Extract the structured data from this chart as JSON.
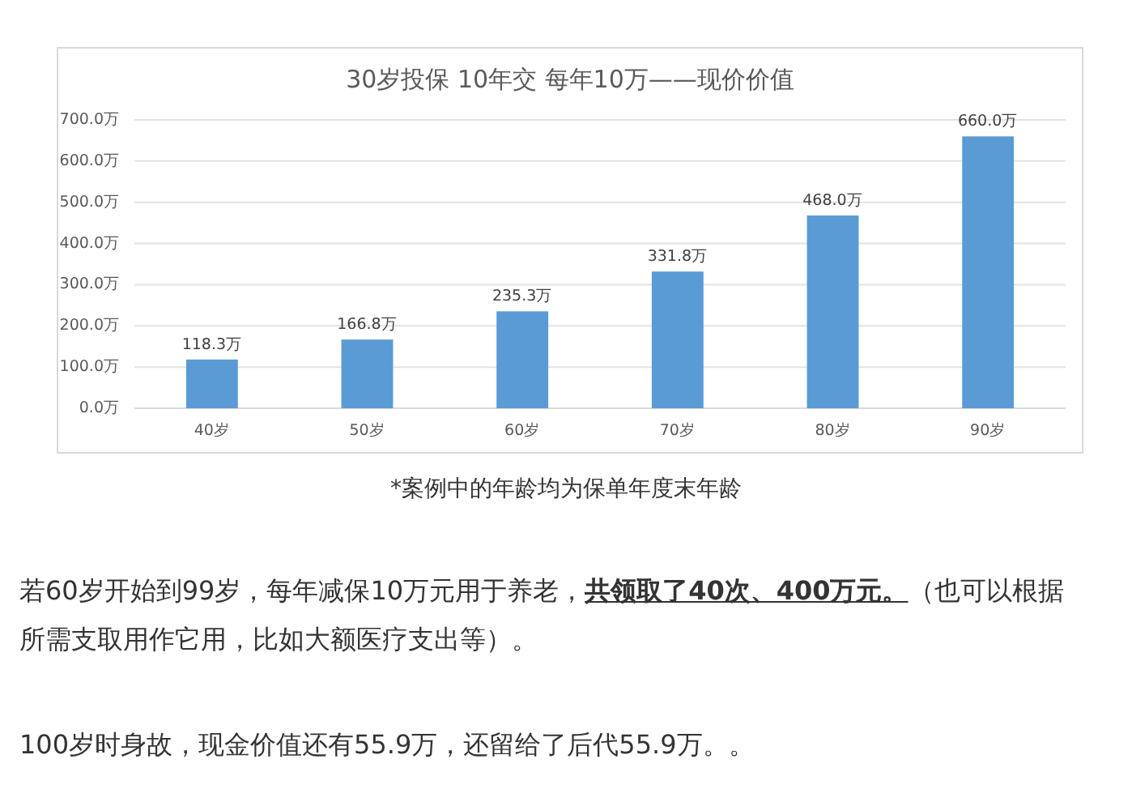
{
  "chart_data": {
    "type": "bar",
    "title": "30岁投保 10年交 每年10万——现价价值",
    "categories": [
      "40岁",
      "50岁",
      "60岁",
      "70岁",
      "80岁",
      "90岁"
    ],
    "values": [
      118.3,
      166.8,
      235.3,
      331.8,
      468.0,
      660.0
    ],
    "value_labels": [
      "118.3万",
      "166.8万",
      "235.3万",
      "331.8万",
      "468.0万",
      "660.0万"
    ],
    "color": "#5b9bd5",
    "ylim": [
      0,
      700
    ],
    "yticks": [
      {
        "value": 0,
        "label": "0.0万"
      },
      {
        "value": 100,
        "label": "100.0万"
      },
      {
        "value": 200,
        "label": "200.0万"
      },
      {
        "value": 300,
        "label": "300.0万"
      },
      {
        "value": 400,
        "label": "400.0万"
      },
      {
        "value": 500,
        "label": "500.0万"
      },
      {
        "value": 600,
        "label": "600.0万"
      },
      {
        "value": 700,
        "label": "700.0万"
      }
    ],
    "grid": "y",
    "annotations": [
      "*案例中的年龄均为保单年度末年龄",
      "若60岁开始到99岁，每年减保10万元用于养老，",
      "共领取了40次、400万元。",
      "（也可以根据",
      "所需支取用作它用，比如大额医疗支出等）。",
      "100岁时身故，现金价值还有55.9万，还留给了后代55.9万。。"
    ]
  }
}
